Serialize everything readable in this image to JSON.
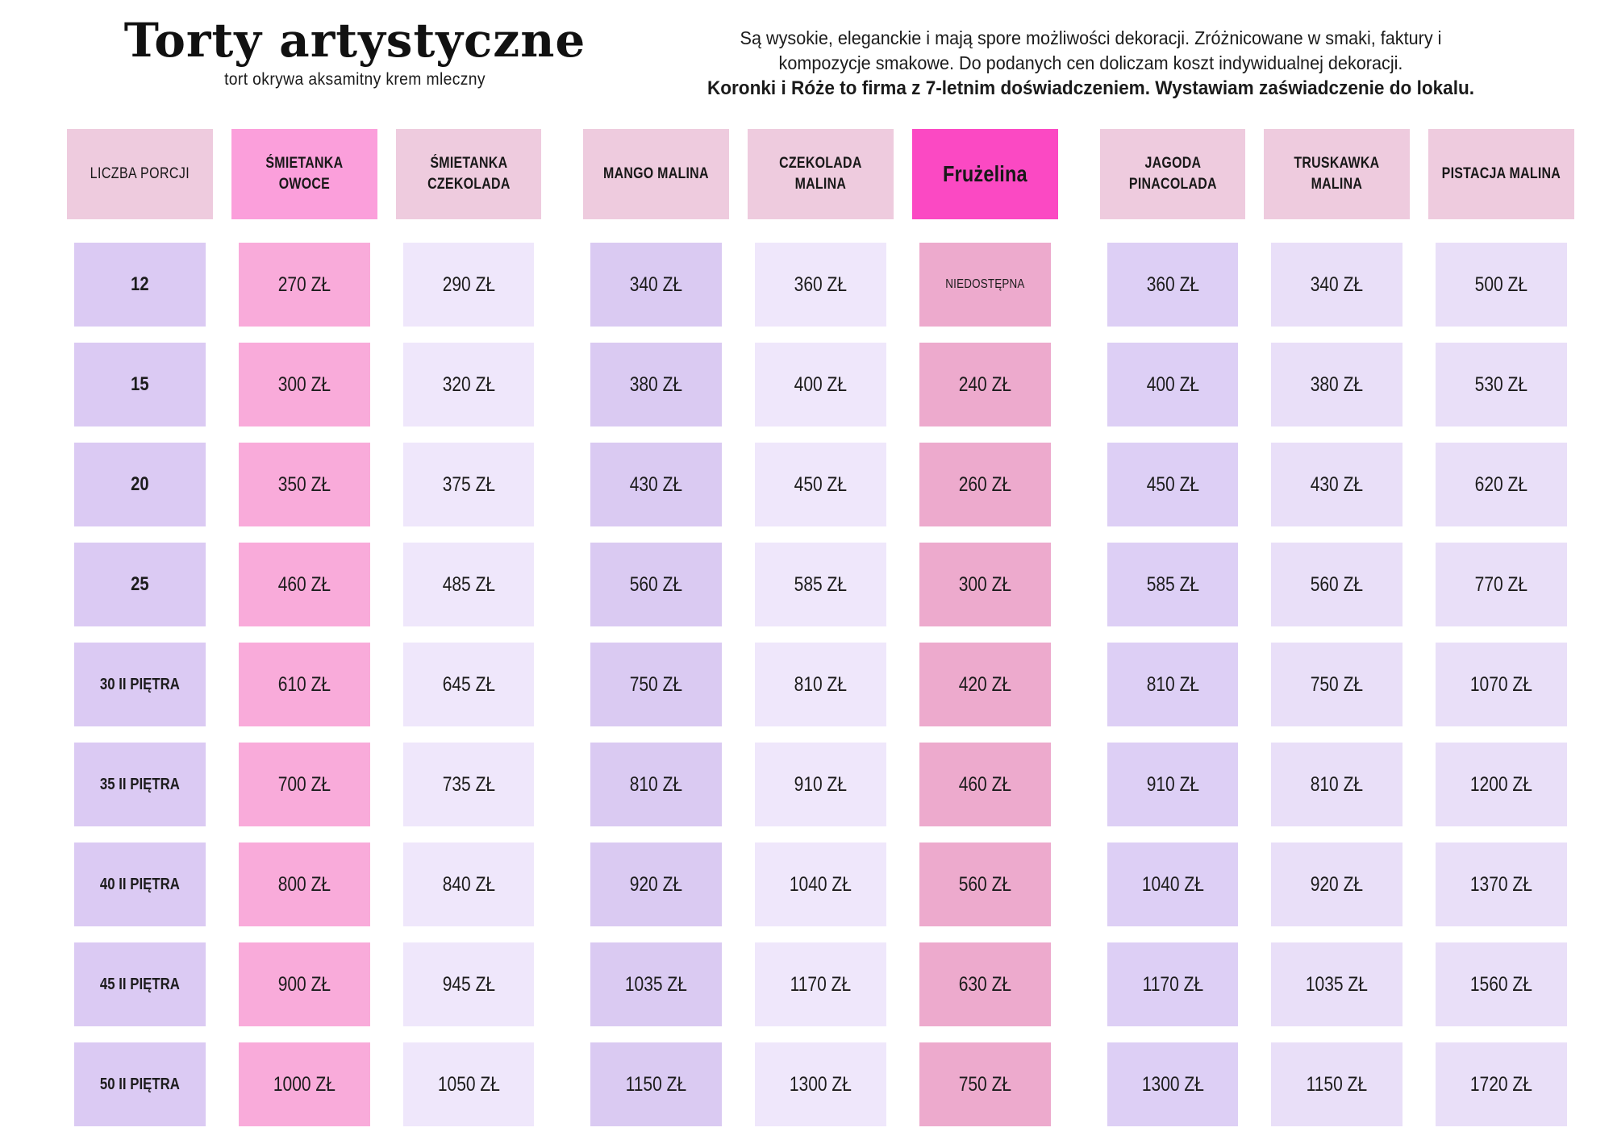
{
  "header": {
    "title": "Torty artystyczne",
    "subtitle": "tort okrywa aksamitny krem mleczny",
    "description_line1": "Są wysokie, eleganckie i mają spore możliwości dekoracji.  Zróżnicowane w smaki, faktury i",
    "description_line2": "kompozycje smakowe. Do podanych cen doliczam koszt indywidualnej dekoracji.",
    "description_line3": "Koronki i Róże to firma z 7-letnim doświadczeniem. Wystawiam zaświadczenie do lokalu."
  },
  "colors": {
    "page_background": "#FFFFFF",
    "header_pink": "#EECBDE",
    "header_bright_pink": "#FB9FDB",
    "header_hot_pink": "#FB49C3",
    "lavender_medium": "#DBCAF3",
    "lavender_light": "#EFE7FB",
    "lavender_soft": "#E9DFF8",
    "pink_data": "#F9ABDA",
    "rose_data": "#EDAACD",
    "text": "#141414"
  },
  "table": {
    "columns": [
      {
        "label": "LICZBA PORCJI",
        "header_bg": "#EECBDE",
        "cell_bg": "#DBCAF3",
        "header_style": "regular"
      },
      {
        "label": "ŚMIETANKA OWOCE",
        "header_bg": "#FB9FDB",
        "cell_bg": "#F9ABDA",
        "header_style": ""
      },
      {
        "label": "ŚMIETANKA CZEKOLADA",
        "header_bg": "#EECBDE",
        "cell_bg": "#EFE7FB",
        "header_style": ""
      },
      {
        "label": "MANGO MALINA",
        "header_bg": "#EECBDE",
        "cell_bg": "#DACAF2",
        "header_style": ""
      },
      {
        "label": "CZEKOLADA MALINA",
        "header_bg": "#EECBDE",
        "cell_bg": "#EFE7FB",
        "header_style": ""
      },
      {
        "label": "Frużelina",
        "header_bg": "#FB49C3",
        "cell_bg": "#EDAACD",
        "header_style": "feature"
      },
      {
        "label": "JAGODA PINACOLADA",
        "header_bg": "#EECBDE",
        "cell_bg": "#DDCFF5",
        "header_style": ""
      },
      {
        "label": "TRUSKAWKA MALINA",
        "header_bg": "#EECBDE",
        "cell_bg": "#E9DFF8",
        "header_style": ""
      },
      {
        "label": "PISTACJA MALINA",
        "header_bg": "#EECBDE",
        "cell_bg": "#E9DFF8",
        "header_style": ""
      }
    ],
    "rows": [
      {
        "porcje": "12",
        "prices": [
          "270 ZŁ",
          "290 ZŁ",
          "340 ZŁ",
          "360 ZŁ",
          "NIEDOSTĘPNA",
          "360 ZŁ",
          "340 ZŁ",
          "500 ZŁ"
        ]
      },
      {
        "porcje": "15",
        "prices": [
          "300 ZŁ",
          "320 ZŁ",
          "380 ZŁ",
          "400 ZŁ",
          "240 ZŁ",
          "400 ZŁ",
          "380 ZŁ",
          "530 ZŁ"
        ]
      },
      {
        "porcje": "20",
        "prices": [
          "350 ZŁ",
          "375 ZŁ",
          "430 ZŁ",
          "450 ZŁ",
          "260 ZŁ",
          "450 ZŁ",
          "430 ZŁ",
          "620 ZŁ"
        ]
      },
      {
        "porcje": "25",
        "prices": [
          "460 ZŁ",
          "485 ZŁ",
          "560 ZŁ",
          "585 ZŁ",
          "300 ZŁ",
          "585 ZŁ",
          "560 ZŁ",
          "770 ZŁ"
        ]
      },
      {
        "porcje": "30 II PIĘTRA",
        "prices": [
          "610 ZŁ",
          "645 ZŁ",
          "750 ZŁ",
          "810 ZŁ",
          "420 ZŁ",
          "810 ZŁ",
          "750 ZŁ",
          "1070 ZŁ"
        ]
      },
      {
        "porcje": "35 II PIĘTRA",
        "prices": [
          "700 ZŁ",
          "735 ZŁ",
          "810 ZŁ",
          "910 ZŁ",
          "460 ZŁ",
          "910 ZŁ",
          "810 ZŁ",
          "1200 ZŁ"
        ]
      },
      {
        "porcje": "40 II PIĘTRA",
        "prices": [
          "800 ZŁ",
          "840 ZŁ",
          "920 ZŁ",
          "1040 ZŁ",
          "560 ZŁ",
          "1040 ZŁ",
          "920 ZŁ",
          "1370 ZŁ"
        ]
      },
      {
        "porcje": "45  II PIĘTRA",
        "prices": [
          "900 ZŁ",
          "945 ZŁ",
          "1035 ZŁ",
          "1170 ZŁ",
          "630 ZŁ",
          "1170 ZŁ",
          "1035 ZŁ",
          "1560 ZŁ"
        ]
      },
      {
        "porcje": "50 II PIĘTRA",
        "prices": [
          "1000 ZŁ",
          "1050 ZŁ",
          "1150 ZŁ",
          "1300 ZŁ",
          "750 ZŁ",
          "1300 ZŁ",
          "1150 ZŁ",
          "1720 ZŁ"
        ]
      }
    ]
  }
}
